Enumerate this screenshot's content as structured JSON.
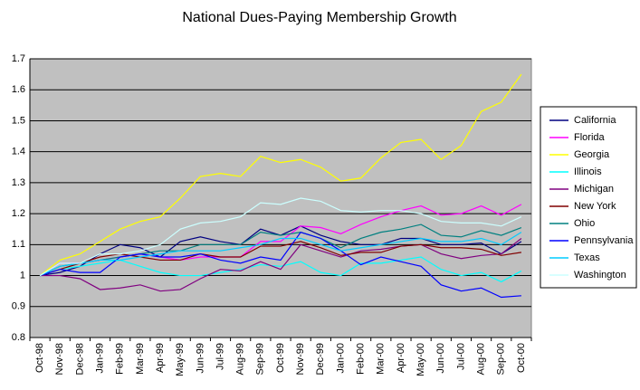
{
  "chart_data": {
    "type": "line",
    "title": "National Dues-Paying Membership Growth",
    "categories": [
      "Oct-98",
      "Nov-98",
      "Dec-98",
      "Jan-99",
      "Feb-99",
      "Mar-99",
      "Apr-99",
      "May-99",
      "Jun-99",
      "Jul-99",
      "Aug-99",
      "Sep-99",
      "Oct-99",
      "Nov-99",
      "Dec-99",
      "Jan-00",
      "Feb-00",
      "Mar-00",
      "Apr-00",
      "May-00",
      "Jun-00",
      "Jul-00",
      "Aug-00",
      "Sep-00",
      "Oct-00"
    ],
    "ylim": [
      0.8,
      1.7
    ],
    "yticks": [
      0.8,
      0.9,
      1,
      1.1,
      1.2,
      1.3,
      1.4,
      1.5,
      1.6,
      1.7
    ],
    "grid": true,
    "legend": "right",
    "series": [
      {
        "name": "California",
        "color": "#000080",
        "values": [
          1.0,
          1.01,
          1.03,
          1.07,
          1.1,
          1.09,
          1.06,
          1.11,
          1.125,
          1.11,
          1.1,
          1.15,
          1.13,
          1.16,
          1.13,
          1.11,
          1.1,
          1.1,
          1.12,
          1.12,
          1.1,
          1.1,
          1.105,
          1.07,
          1.11
        ]
      },
      {
        "name": "Florida",
        "color": "#ff00ff",
        "values": [
          1.0,
          1.04,
          1.04,
          1.05,
          1.06,
          1.07,
          1.06,
          1.05,
          1.06,
          1.06,
          1.06,
          1.11,
          1.11,
          1.16,
          1.155,
          1.135,
          1.165,
          1.19,
          1.21,
          1.225,
          1.195,
          1.2,
          1.225,
          1.195,
          1.23
        ]
      },
      {
        "name": "Georgia",
        "color": "#ffff00",
        "values": [
          1.0,
          1.05,
          1.07,
          1.11,
          1.15,
          1.175,
          1.19,
          1.25,
          1.32,
          1.33,
          1.32,
          1.385,
          1.365,
          1.375,
          1.35,
          1.305,
          1.315,
          1.38,
          1.43,
          1.44,
          1.375,
          1.42,
          1.53,
          1.56,
          1.65
        ]
      },
      {
        "name": "Illinois",
        "color": "#00ffff",
        "values": [
          1.0,
          1.02,
          1.03,
          1.04,
          1.05,
          1.03,
          1.01,
          1.0,
          1.0,
          1.01,
          1.02,
          1.035,
          1.03,
          1.045,
          1.01,
          1.0,
          1.04,
          1.04,
          1.05,
          1.06,
          1.02,
          1.0,
          1.01,
          0.98,
          1.015
        ]
      },
      {
        "name": "Michigan",
        "color": "#800080",
        "values": [
          1.0,
          1.0,
          0.99,
          0.955,
          0.96,
          0.97,
          0.95,
          0.955,
          0.99,
          1.02,
          1.015,
          1.045,
          1.02,
          1.1,
          1.08,
          1.06,
          1.08,
          1.085,
          1.095,
          1.1,
          1.07,
          1.055,
          1.065,
          1.07,
          1.12
        ]
      },
      {
        "name": "New York",
        "color": "#800000",
        "values": [
          1.0,
          1.02,
          1.04,
          1.06,
          1.07,
          1.06,
          1.05,
          1.05,
          1.07,
          1.06,
          1.06,
          1.095,
          1.095,
          1.11,
          1.09,
          1.065,
          1.075,
          1.075,
          1.095,
          1.1,
          1.09,
          1.09,
          1.085,
          1.065,
          1.075
        ]
      },
      {
        "name": "Ohio",
        "color": "#008080",
        "values": [
          1.0,
          1.03,
          1.04,
          1.05,
          1.06,
          1.07,
          1.08,
          1.08,
          1.1,
          1.1,
          1.1,
          1.14,
          1.13,
          1.14,
          1.12,
          1.09,
          1.12,
          1.14,
          1.15,
          1.165,
          1.13,
          1.125,
          1.145,
          1.13,
          1.155
        ]
      },
      {
        "name": "Pennsylvania",
        "color": "#0000ff",
        "values": [
          1.0,
          1.02,
          1.01,
          1.01,
          1.06,
          1.07,
          1.06,
          1.06,
          1.07,
          1.05,
          1.04,
          1.06,
          1.05,
          1.14,
          1.12,
          1.08,
          1.035,
          1.06,
          1.045,
          1.03,
          0.97,
          0.95,
          0.96,
          0.93,
          0.935
        ]
      },
      {
        "name": "Texas",
        "color": "#00ccff",
        "values": [
          1.0,
          1.03,
          1.04,
          1.05,
          1.05,
          1.06,
          1.07,
          1.08,
          1.08,
          1.08,
          1.09,
          1.1,
          1.12,
          1.12,
          1.1,
          1.08,
          1.09,
          1.1,
          1.11,
          1.12,
          1.11,
          1.11,
          1.12,
          1.1,
          1.14
        ]
      },
      {
        "name": "Washington",
        "color": "#ccffff",
        "values": [
          1.0,
          1.04,
          1.04,
          1.07,
          1.07,
          1.08,
          1.1,
          1.15,
          1.17,
          1.175,
          1.19,
          1.235,
          1.23,
          1.25,
          1.24,
          1.21,
          1.205,
          1.21,
          1.21,
          1.2,
          1.175,
          1.17,
          1.17,
          1.16,
          1.19
        ]
      }
    ]
  }
}
